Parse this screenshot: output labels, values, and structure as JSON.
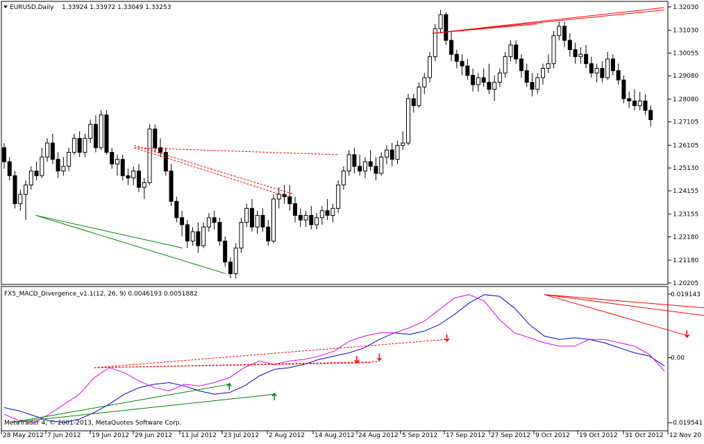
{
  "colors": {
    "background": "#ffffff",
    "candle_up": "#ffffff",
    "candle_down": "#000000",
    "candle_outline": "#000000",
    "macd_line": "#0000cc",
    "signal_line": "#e800e8",
    "bullish_divergence": "#008000",
    "bearish_divergence": "#ff0000"
  },
  "header": {
    "symbol_title": "EURUSD,Daily",
    "ohlc": "1.33924 1.33972 1.33049 1.33253"
  },
  "indicator": {
    "title": "FX5_MACD_Divergence_v1.1(12, 26, 9) 0.0046193 0.0051882"
  },
  "footer": {
    "copyright": "MetaTrader 4, © 2001-2013, MetaQuotes Software Corp."
  },
  "chart_data": [
    {
      "type": "candlestick",
      "title": "EURUSD,Daily",
      "ylim": [
        1.202,
        1.3203
      ],
      "y_ticks": [
        "1.32030",
        "1.31030",
        "1.30055",
        "1.29080",
        "1.28080",
        "1.27105",
        "1.26105",
        "1.25130",
        "1.24155",
        "1.23155",
        "1.22180",
        "1.21180",
        "1.20205"
      ],
      "x_labels": [
        "28 May 2012",
        "7 Jun 2012",
        "19 Jun 2012",
        "29 Jun 2012",
        "11 Jul 2012",
        "23 Jul 2012",
        "2 Aug 2012",
        "14 Aug 2012",
        "24 Aug 2012",
        "5 Sep 2012",
        "17 Sep 2012",
        "27 Sep 2012",
        "9 Oct 2012",
        "19 Oct 2012",
        "31 Oct 2012",
        "12 Nov 20"
      ],
      "candles": [
        [
          1.26,
          1.262,
          1.251,
          1.254
        ],
        [
          1.254,
          1.256,
          1.246,
          1.248
        ],
        [
          1.248,
          1.25,
          1.234,
          1.236
        ],
        [
          1.236,
          1.242,
          1.233,
          1.24
        ],
        [
          1.24,
          1.246,
          1.229,
          1.244
        ],
        [
          1.244,
          1.252,
          1.242,
          1.25
        ],
        [
          1.25,
          1.254,
          1.246,
          1.248
        ],
        [
          1.248,
          1.26,
          1.247,
          1.256
        ],
        [
          1.256,
          1.264,
          1.254,
          1.262
        ],
        [
          1.262,
          1.266,
          1.253,
          1.255
        ],
        [
          1.255,
          1.258,
          1.247,
          1.25
        ],
        [
          1.25,
          1.256,
          1.248,
          1.252
        ],
        [
          1.252,
          1.26,
          1.25,
          1.258
        ],
        [
          1.258,
          1.266,
          1.257,
          1.264
        ],
        [
          1.264,
          1.267,
          1.256,
          1.258
        ],
        [
          1.258,
          1.266,
          1.256,
          1.264
        ],
        [
          1.264,
          1.272,
          1.262,
          1.27
        ],
        [
          1.27,
          1.274,
          1.258,
          1.26
        ],
        [
          1.26,
          1.276,
          1.259,
          1.274
        ],
        [
          1.274,
          1.276,
          1.257,
          1.258
        ],
        [
          1.258,
          1.26,
          1.251,
          1.253
        ],
        [
          1.253,
          1.257,
          1.248,
          1.255
        ],
        [
          1.255,
          1.257,
          1.246,
          1.248
        ],
        [
          1.248,
          1.251,
          1.244,
          1.247
        ],
        [
          1.247,
          1.252,
          1.244,
          1.25
        ],
        [
          1.25,
          1.253,
          1.241,
          1.243
        ],
        [
          1.243,
          1.247,
          1.238,
          1.245
        ],
        [
          1.245,
          1.27,
          1.244,
          1.268
        ],
        [
          1.268,
          1.27,
          1.258,
          1.26
        ],
        [
          1.26,
          1.264,
          1.256,
          1.258
        ],
        [
          1.258,
          1.26,
          1.248,
          1.25
        ],
        [
          1.25,
          1.253,
          1.235,
          1.237
        ],
        [
          1.237,
          1.239,
          1.228,
          1.23
        ],
        [
          1.23,
          1.233,
          1.222,
          1.227
        ],
        [
          1.227,
          1.229,
          1.217,
          1.22
        ],
        [
          1.22,
          1.226,
          1.218,
          1.224
        ],
        [
          1.224,
          1.228,
          1.215,
          1.218
        ],
        [
          1.218,
          1.228,
          1.217,
          1.226
        ],
        [
          1.226,
          1.232,
          1.224,
          1.23
        ],
        [
          1.23,
          1.233,
          1.225,
          1.228
        ],
        [
          1.228,
          1.23,
          1.218,
          1.22
        ],
        [
          1.22,
          1.222,
          1.209,
          1.211
        ],
        [
          1.211,
          1.213,
          1.204,
          1.206
        ],
        [
          1.206,
          1.219,
          1.204,
          1.217
        ],
        [
          1.217,
          1.23,
          1.215,
          1.228
        ],
        [
          1.228,
          1.236,
          1.226,
          1.234
        ],
        [
          1.234,
          1.238,
          1.224,
          1.226
        ],
        [
          1.226,
          1.233,
          1.223,
          1.231
        ],
        [
          1.231,
          1.234,
          1.224,
          1.226
        ],
        [
          1.226,
          1.229,
          1.218,
          1.22
        ],
        [
          1.22,
          1.24,
          1.219,
          1.238
        ],
        [
          1.238,
          1.243,
          1.234,
          1.24
        ],
        [
          1.24,
          1.244,
          1.236,
          1.239
        ],
        [
          1.239,
          1.244,
          1.233,
          1.236
        ],
        [
          1.236,
          1.239,
          1.228,
          1.231
        ],
        [
          1.231,
          1.234,
          1.226,
          1.229
        ],
        [
          1.229,
          1.233,
          1.226,
          1.231
        ],
        [
          1.231,
          1.235,
          1.225,
          1.227
        ],
        [
          1.227,
          1.232,
          1.225,
          1.23
        ],
        [
          1.23,
          1.235,
          1.227,
          1.233
        ],
        [
          1.233,
          1.238,
          1.229,
          1.231
        ],
        [
          1.231,
          1.236,
          1.228,
          1.234
        ],
        [
          1.234,
          1.246,
          1.232,
          1.244
        ],
        [
          1.244,
          1.252,
          1.242,
          1.25
        ],
        [
          1.25,
          1.259,
          1.248,
          1.257
        ],
        [
          1.257,
          1.26,
          1.249,
          1.252
        ],
        [
          1.252,
          1.257,
          1.248,
          1.25
        ],
        [
          1.25,
          1.256,
          1.247,
          1.254
        ],
        [
          1.254,
          1.259,
          1.25,
          1.252
        ],
        [
          1.252,
          1.256,
          1.246,
          1.249
        ],
        [
          1.249,
          1.258,
          1.248,
          1.256
        ],
        [
          1.256,
          1.261,
          1.253,
          1.259
        ],
        [
          1.259,
          1.262,
          1.252,
          1.255
        ],
        [
          1.255,
          1.263,
          1.253,
          1.261
        ],
        [
          1.261,
          1.267,
          1.259,
          1.262
        ],
        [
          1.262,
          1.283,
          1.261,
          1.281
        ],
        [
          1.281,
          1.283,
          1.275,
          1.278
        ],
        [
          1.278,
          1.288,
          1.277,
          1.286
        ],
        [
          1.286,
          1.292,
          1.283,
          1.29
        ],
        [
          1.29,
          1.301,
          1.288,
          1.299
        ],
        [
          1.299,
          1.313,
          1.297,
          1.311
        ],
        [
          1.311,
          1.319,
          1.309,
          1.317
        ],
        [
          1.317,
          1.318,
          1.304,
          1.306
        ],
        [
          1.306,
          1.31,
          1.297,
          1.3
        ],
        [
          1.3,
          1.302,
          1.294,
          1.297
        ],
        [
          1.297,
          1.3,
          1.291,
          1.295
        ],
        [
          1.295,
          1.298,
          1.289,
          1.291
        ],
        [
          1.291,
          1.294,
          1.284,
          1.287
        ],
        [
          1.287,
          1.292,
          1.284,
          1.29
        ],
        [
          1.29,
          1.294,
          1.286,
          1.288
        ],
        [
          1.288,
          1.296,
          1.283,
          1.285
        ],
        [
          1.285,
          1.291,
          1.28,
          1.288
        ],
        [
          1.288,
          1.294,
          1.286,
          1.292
        ],
        [
          1.292,
          1.301,
          1.29,
          1.299
        ],
        [
          1.299,
          1.306,
          1.297,
          1.304
        ],
        [
          1.304,
          1.306,
          1.296,
          1.298
        ],
        [
          1.298,
          1.3,
          1.29,
          1.293
        ],
        [
          1.293,
          1.296,
          1.286,
          1.288
        ],
        [
          1.288,
          1.292,
          1.282,
          1.285
        ],
        [
          1.285,
          1.292,
          1.283,
          1.29
        ],
        [
          1.29,
          1.296,
          1.287,
          1.294
        ],
        [
          1.294,
          1.3,
          1.292,
          1.296
        ],
        [
          1.296,
          1.31,
          1.294,
          1.308
        ],
        [
          1.308,
          1.314,
          1.306,
          1.312
        ],
        [
          1.312,
          1.314,
          1.303,
          1.306
        ],
        [
          1.306,
          1.309,
          1.299,
          1.302
        ],
        [
          1.302,
          1.305,
          1.296,
          1.299
        ],
        [
          1.299,
          1.303,
          1.296,
          1.3
        ],
        [
          1.3,
          1.304,
          1.294,
          1.296
        ],
        [
          1.296,
          1.299,
          1.29,
          1.292
        ],
        [
          1.292,
          1.296,
          1.288,
          1.294
        ],
        [
          1.294,
          1.297,
          1.288,
          1.29
        ],
        [
          1.29,
          1.301,
          1.289,
          1.298
        ],
        [
          1.298,
          1.3,
          1.291,
          1.293
        ],
        [
          1.293,
          1.296,
          1.287,
          1.289
        ],
        [
          1.289,
          1.291,
          1.279,
          1.281
        ],
        [
          1.281,
          1.284,
          1.277,
          1.28
        ],
        [
          1.28,
          1.285,
          1.276,
          1.278
        ],
        [
          1.278,
          1.284,
          1.276,
          1.28
        ],
        [
          1.28,
          1.283,
          1.274,
          1.276
        ],
        [
          1.276,
          1.278,
          1.269,
          1.272
        ]
      ],
      "divergence_lines": [
        {
          "kind": "bullish",
          "style": "solid",
          "from": [
            19,
            1.231
          ],
          "to": [
            107,
            1.217
          ]
        },
        {
          "kind": "bullish",
          "style": "solid",
          "from": [
            19,
            1.231
          ],
          "to": [
            133,
            1.206
          ]
        },
        {
          "kind": "bearish",
          "style": "dashed",
          "from": [
            78,
            1.26
          ],
          "to": [
            200,
            1.257
          ]
        },
        {
          "kind": "bearish",
          "style": "dashed",
          "from": [
            78,
            1.26
          ],
          "to": [
            170,
            1.239
          ]
        },
        {
          "kind": "bearish",
          "style": "dashed",
          "from": [
            78,
            1.261
          ],
          "to": [
            174,
            1.24
          ]
        },
        {
          "kind": "bearish",
          "style": "solid",
          "from": [
            257,
            1.309
          ],
          "to": [
            320,
            1.313
          ]
        },
        {
          "kind": "bearish",
          "style": "solid",
          "from": [
            257,
            1.309
          ],
          "to": [
            396,
            1.319
          ]
        },
        {
          "kind": "bearish",
          "style": "solid",
          "from": [
            257,
            1.309
          ],
          "to": [
            396,
            1.32
          ]
        }
      ]
    },
    {
      "type": "line",
      "title": "FX5_MACD_Divergence_v1.1(12, 26, 9) 0.0046193 0.0051882",
      "ylim": [
        -0.0195,
        0.01914
      ],
      "y_ticks": [
        "0.019143",
        "0.00",
        "-0.019541"
      ],
      "series": [
        {
          "values": [
            -0.015,
            -0.016,
            -0.0175,
            -0.019,
            -0.0195,
            -0.0185,
            -0.0165,
            -0.014,
            -0.011,
            -0.009,
            -0.008,
            -0.0075,
            -0.0085,
            -0.01,
            -0.011,
            -0.0105,
            -0.0085,
            -0.0055,
            -0.0035,
            -0.003,
            -0.002,
            -0.0005,
            0.0005,
            0.0015,
            0.003,
            0.0055,
            0.0075,
            0.007,
            0.008,
            0.01,
            0.013,
            0.0165,
            0.019,
            0.0185,
            0.015,
            0.01,
            0.0065,
            0.0055,
            0.006,
            0.0055,
            0.0045,
            0.003,
            0.0015,
            0.0005,
            -0.0025
          ]
        },
        {
          "values": [
            -0.017,
            -0.019,
            -0.0195,
            -0.017,
            -0.014,
            -0.011,
            -0.006,
            -0.003,
            -0.0045,
            -0.007,
            -0.009,
            -0.01,
            -0.008,
            -0.0085,
            -0.0075,
            -0.006,
            -0.003,
            -0.001,
            -0.002,
            -0.001,
            -0.0005,
            0.0005,
            0.002,
            0.005,
            0.0065,
            0.0075,
            0.0075,
            0.009,
            0.011,
            0.0145,
            0.018,
            0.019,
            0.017,
            0.0115,
            0.0075,
            0.006,
            0.0045,
            0.0035,
            0.0035,
            0.0055,
            0.0055,
            0.0045,
            0.0035,
            0.001,
            -0.004
          ]
        }
      ],
      "divergence_lines": [
        {
          "kind": "bullish",
          "style": "solid",
          "from": [
            0.5,
            -0.0195
          ],
          "to": [
            15,
            -0.008
          ]
        },
        {
          "kind": "bullish",
          "style": "solid",
          "from": [
            0.5,
            -0.0195
          ],
          "to": [
            18,
            -0.011
          ]
        },
        {
          "kind": "bearish",
          "style": "dashed",
          "from": [
            6,
            -0.003
          ],
          "to": [
            29.5,
            0.0055
          ]
        },
        {
          "kind": "bearish",
          "style": "dashed",
          "from": [
            6,
            -0.003
          ],
          "to": [
            24.5,
            -0.0015
          ]
        },
        {
          "kind": "bearish",
          "style": "dashed",
          "from": [
            6,
            -0.003
          ],
          "to": [
            25,
            -0.0012
          ]
        },
        {
          "kind": "bearish",
          "style": "solid",
          "from": [
            36,
            0.019
          ],
          "to": [
            52,
            0.013
          ]
        },
        {
          "kind": "bearish",
          "style": "solid",
          "from": [
            36,
            0.019
          ],
          "to": [
            52,
            0.0095
          ]
        },
        {
          "kind": "bearish",
          "style": "solid",
          "from": [
            36,
            0.019
          ],
          "to": [
            45.5,
            0.0067
          ]
        }
      ],
      "arrows": [
        {
          "kind": "up",
          "x": 15,
          "y": -0.009
        },
        {
          "kind": "up",
          "x": 18,
          "y": -0.012
        },
        {
          "kind": "down",
          "x": 23.5,
          "y": -0.0005
        },
        {
          "kind": "down",
          "x": 25,
          "y": 0.0002
        },
        {
          "kind": "down",
          "x": 29.5,
          "y": 0.006
        },
        {
          "kind": "down",
          "x": 45.5,
          "y": 0.0072
        }
      ]
    }
  ]
}
